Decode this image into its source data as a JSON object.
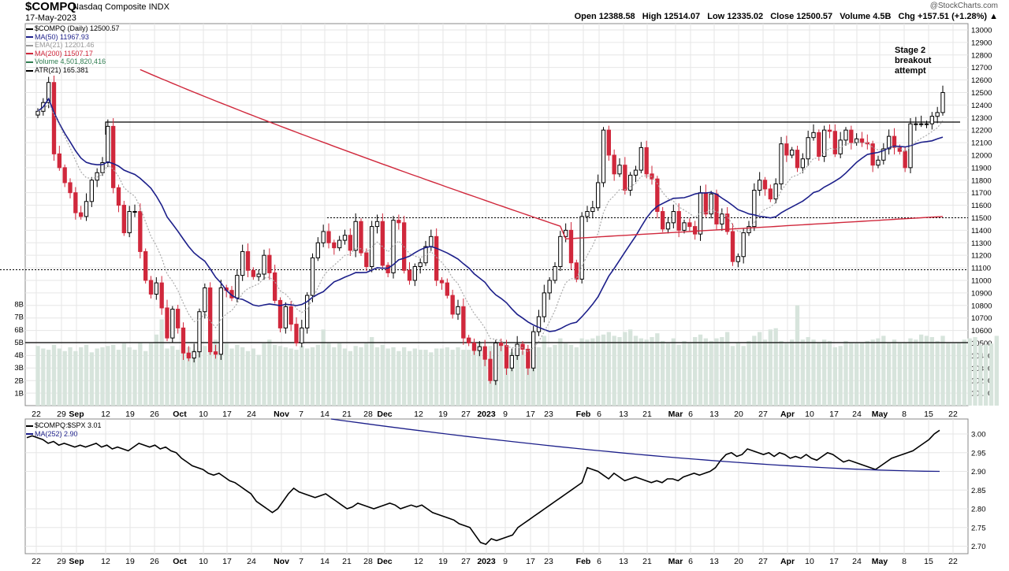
{
  "header": {
    "symbol": "$COMPQ",
    "name": "Nasdaq Composite",
    "exchange": "INDX",
    "date": "17-May-2023",
    "brand": "@StockCharts.com",
    "open_label": "Open",
    "open": "12388.58",
    "high_label": "High",
    "high": "12514.07",
    "low_label": "Low",
    "low": "12335.02",
    "close_label": "Close",
    "close": "12500.57",
    "volume_label": "Volume",
    "volume": "4.5B",
    "chg_label": "Chg",
    "chg": "+157.51 (+1.28%)",
    "chg_arrow": "▲"
  },
  "legend": [
    {
      "text": "$COMPQ (Daily) 12500.57",
      "color": "#000000",
      "icon": "candle"
    },
    {
      "text": "MA(50) 11967.93",
      "color": "#1c1f8a",
      "icon": "line"
    },
    {
      "text": "EMA(21) 12201.46",
      "color": "#999999",
      "icon": "dotted-line"
    },
    {
      "text": "MA(200) 11507.17",
      "color": "#d0283c",
      "icon": "line"
    },
    {
      "text": "Volume 4,501,820,416",
      "color": "#2e7d50",
      "icon": "bars"
    },
    {
      "text": "ATR(21) 165.381",
      "color": "#000000",
      "icon": "line"
    }
  ],
  "lower_legend": [
    {
      "text": "$COMPQ:$SPX 3.01",
      "color": "#000000",
      "icon": "line"
    },
    {
      "text": "MA(252) 2.90",
      "color": "#1c1f8a",
      "icon": "line"
    }
  ],
  "annotation": {
    "line1": "Stage 2",
    "line2": "breakout",
    "line3": "attempt"
  },
  "colors": {
    "up": "#ffffff",
    "down": "#d0283c",
    "volume": "#d7e4dc",
    "grid": "#e6e6e6",
    "ma50": "#1c1f8a",
    "ma200": "#d0283c",
    "ema21": "#aaaaaa"
  },
  "chart_data": [
    {
      "type": "candlestick",
      "title": "$COMPQ Nasdaq Composite INDX",
      "ylim": [
        10000,
        13050
      ],
      "y_ticks": [
        "13000",
        "12900",
        "12800",
        "12700",
        "12600",
        "12500",
        "12400",
        "12300",
        "12200",
        "12100",
        "12000",
        "11900",
        "11800",
        "11700",
        "11600",
        "11500",
        "11400",
        "11300",
        "11200",
        "11100",
        "11000",
        "10900",
        "10800",
        "10700",
        "10600",
        "10500",
        "10400",
        "10300",
        "10200",
        "10100"
      ],
      "x_ticks": [
        "22",
        "29",
        "Sep",
        "12",
        "19",
        "26",
        "Oct",
        "10",
        "17",
        "24",
        "Nov",
        "7",
        "14",
        "21",
        "28",
        "Dec",
        "12",
        "19",
        "27",
        "2023",
        "9",
        "17",
        "23",
        "Feb",
        "6",
        "13",
        "21",
        "Mar",
        "6",
        "13",
        "20",
        "27",
        "Apr",
        "10",
        "17",
        "24",
        "May",
        "8",
        "15",
        "22"
      ],
      "closes": [
        12350,
        12420,
        12580,
        12010,
        11900,
        11780,
        11700,
        11540,
        11510,
        11630,
        11800,
        11860,
        11940,
        12230,
        11740,
        11600,
        11380,
        11550,
        11550,
        11230,
        11000,
        10890,
        10980,
        10780,
        10540,
        10770,
        10620,
        10420,
        10380,
        10430,
        10750,
        10940,
        10430,
        10410,
        10940,
        10920,
        10860,
        11040,
        11230,
        11080,
        11030,
        11050,
        11200,
        11060,
        10840,
        10620,
        10790,
        10650,
        10500,
        10620,
        10880,
        11180,
        11300,
        11390,
        11300,
        11260,
        11320,
        11360,
        11240,
        11470,
        11220,
        11110,
        11430,
        11470,
        11120,
        11060,
        11480,
        11460,
        11080,
        11000,
        11110,
        11140,
        11270,
        11350,
        11000,
        10980,
        10880,
        10730,
        10790,
        10540,
        10500,
        10440,
        10470,
        10370,
        10200,
        10500,
        10480,
        10300,
        10400,
        10490,
        10450,
        10300,
        10590,
        10710,
        10900,
        11000,
        11110,
        11350,
        11400,
        11140,
        11010,
        11510,
        11550,
        11580,
        11780,
        12200,
        12000,
        11850,
        11920,
        11720,
        11840,
        11880,
        12060,
        11850,
        11810,
        11550,
        11410,
        11460,
        11550,
        11400,
        11460,
        11430,
        11370,
        11700,
        11530,
        11690,
        11450,
        11530,
        11390,
        11150,
        11190,
        11380,
        11430,
        11720,
        11800,
        11730,
        11650,
        11770,
        12090,
        12000,
        12040,
        11900,
        11970,
        12140,
        12180,
        11990,
        12200,
        12190,
        12010,
        12120,
        12200,
        12100,
        12130,
        12100,
        12090,
        11920,
        11960,
        12050,
        12150,
        12060,
        12030,
        11900,
        12250,
        12250,
        12250,
        12250,
        12310,
        12340,
        12500
      ],
      "volume_B": [
        4.7,
        4.5,
        4.4,
        4.8,
        4.5,
        4.3,
        4.6,
        4.3,
        4.6,
        4.8,
        4.2,
        4.5,
        4.6,
        4.7,
        4.8,
        4.4,
        4.9,
        4.6,
        4.4,
        5.0,
        4.3,
        4.9,
        5.6,
        6.8,
        4.5,
        4.7,
        4.4,
        4.4,
        4.6,
        4.4,
        4.6,
        4.7,
        5.0,
        5.2,
        4.6,
        4.9,
        4.5,
        4.8,
        4.6,
        4.3,
        4.5,
        4.0,
        4.9,
        5.2,
        4.8,
        4.7,
        4.6,
        4.5,
        4.4,
        4.7,
        4.5,
        4.6,
        4.8,
        6.0,
        4.9,
        4.6,
        4.9,
        4.5,
        4.3,
        4.7,
        4.6,
        4.9,
        5.4,
        4.6,
        4.8,
        4.5,
        4.6,
        4.3,
        4.6,
        4.3,
        4.5,
        4.4,
        4.4,
        4.2,
        4.5,
        4.5,
        4.6,
        4.4,
        4.6,
        4.4,
        4.4,
        4.8,
        5.0,
        4.7,
        4.7,
        4.5,
        4.7,
        4.3,
        4.2,
        4.5,
        4.3,
        4.5,
        4.7,
        4.6,
        5.5,
        4.6,
        4.8,
        5.3,
        4.9,
        4.8,
        4.6,
        5.3,
        5.2,
        5.3,
        5.5,
        5.6,
        5.8,
        5.5,
        5.4,
        5.8,
        6.0,
        5.5,
        5.3,
        5.2,
        5.4,
        5.7,
        5.1,
        4.9,
        5.3,
        4.8,
        5.1,
        5.0,
        5.4,
        5.6,
        5.3,
        5.1,
        5.3,
        5.4,
        5.8,
        4.7,
        5.0,
        4.7,
        5.1,
        5.5,
        5.8,
        5.2,
        6.0,
        6.1,
        5.1,
        4.9,
        5.2,
        7.9,
        5.2,
        5.4,
        5.2,
        5.0,
        5.2,
        5.1,
        4.6,
        4.7,
        5.1,
        5.0,
        4.9,
        5.0,
        5.1,
        5.2,
        5.3,
        5.5,
        5.0,
        5.2,
        5.0,
        5.0,
        5.3,
        5.2,
        5.6,
        5.5,
        5.4,
        5.1,
        5.5,
        5.0,
        4.9,
        5.0,
        5.2,
        5.3,
        5.4,
        4.8,
        4.8,
        4.9,
        5.5
      ]
    },
    {
      "type": "line",
      "title": "$COMPQ:$SPX",
      "ylim": [
        2.68,
        3.04
      ],
      "y_ticks": [
        "3.00",
        "2.95",
        "2.90",
        "2.85",
        "2.80",
        "2.75",
        "2.70"
      ],
      "ratio_values": [
        2.99,
        2.995,
        2.99,
        2.985,
        2.975,
        2.98,
        2.97,
        2.975,
        2.97,
        2.965,
        2.97,
        2.965,
        2.97,
        2.975,
        2.965,
        2.97,
        2.96,
        2.965,
        2.96,
        2.955,
        2.965,
        2.975,
        2.97,
        2.965,
        2.97,
        2.96,
        2.965,
        2.955,
        2.95,
        2.935,
        2.925,
        2.915,
        2.91,
        2.905,
        2.895,
        2.89,
        2.895,
        2.885,
        2.875,
        2.87,
        2.86,
        2.85,
        2.84,
        2.82,
        2.81,
        2.8,
        2.79,
        2.8,
        2.82,
        2.84,
        2.855,
        2.845,
        2.84,
        2.835,
        2.83,
        2.835,
        2.84,
        2.83,
        2.82,
        2.81,
        2.8,
        2.805,
        2.815,
        2.81,
        2.805,
        2.8,
        2.805,
        2.81,
        2.815,
        2.81,
        2.8,
        2.805,
        2.81,
        2.805,
        2.81,
        2.8,
        2.79,
        2.785,
        2.78,
        2.775,
        2.77,
        2.76,
        2.755,
        2.75,
        2.73,
        2.71,
        2.705,
        2.72,
        2.715,
        2.72,
        2.725,
        2.73,
        2.75,
        2.76,
        2.77,
        2.78,
        2.79,
        2.8,
        2.81,
        2.82,
        2.83,
        2.84,
        2.85,
        2.86,
        2.87,
        2.91,
        2.905,
        2.9,
        2.89,
        2.88,
        2.895,
        2.885,
        2.875,
        2.88,
        2.885,
        2.88,
        2.875,
        2.87,
        2.875,
        2.87,
        2.88,
        2.88,
        2.875,
        2.885,
        2.89,
        2.895,
        2.89,
        2.895,
        2.9,
        2.91,
        2.93,
        2.945,
        2.95,
        2.94,
        2.945,
        2.96,
        2.955,
        2.95,
        2.945,
        2.95,
        2.94,
        2.95,
        2.945,
        2.935,
        2.94,
        2.935,
        2.945,
        2.935,
        2.93,
        2.94,
        2.95,
        2.945,
        2.935,
        2.925,
        2.93,
        2.925,
        2.92,
        2.915,
        2.91,
        2.905,
        2.915,
        2.925,
        2.935,
        2.94,
        2.945,
        2.95,
        2.955,
        2.965,
        2.975,
        2.985,
        3.0,
        3.01
      ],
      "ma252_start": 3.04,
      "ma252_end": 2.9
    }
  ]
}
